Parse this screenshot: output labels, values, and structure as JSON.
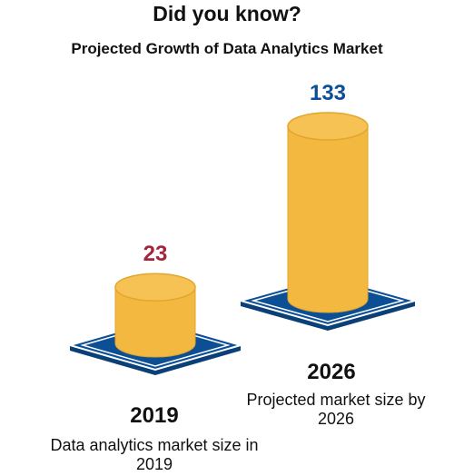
{
  "heading": "Did you know?",
  "colors": {
    "cylinder": "#F2B840",
    "cylinder_top": "#F6C253",
    "cylinder_stroke": "#E3A52C",
    "base": "#0D4F94",
    "base_stroke": "#FFFFFF",
    "label_2019": "#A4263C",
    "label_2026": "#0D4F94"
  },
  "chart_data": {
    "type": "bar",
    "title": "Projected Growth of Data Analytics Market",
    "categories": [
      "2019",
      "2026"
    ],
    "values": [
      23,
      133
    ],
    "descriptions": [
      "Data analytics market size in 2019",
      "Projected market size by 2026"
    ]
  }
}
